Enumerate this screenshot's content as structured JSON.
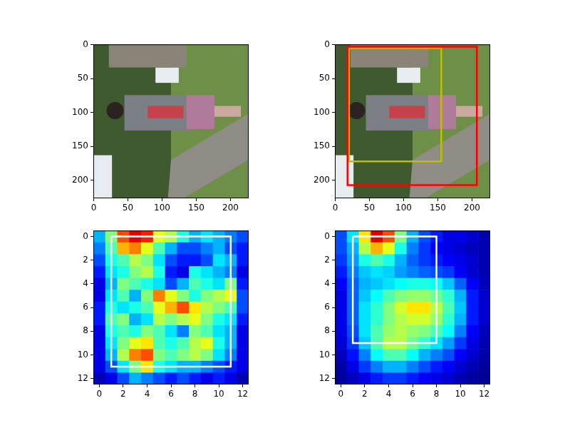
{
  "chart_data": [
    {
      "type": "image",
      "xlim": [
        -0.5,
        226.5
      ],
      "ylim": [
        226.5,
        -0.5
      ],
      "xticks": [
        0,
        50,
        100,
        150,
        200
      ],
      "yticks": [
        0,
        50,
        100,
        150,
        200
      ],
      "grid": false,
      "boxes": []
    },
    {
      "type": "image",
      "xlim": [
        -0.5,
        226.5
      ],
      "ylim": [
        226.5,
        -0.5
      ],
      "xticks": [
        0,
        50,
        100,
        150,
        200
      ],
      "yticks": [
        0,
        50,
        100,
        150,
        200
      ],
      "grid": false,
      "boxes": [
        {
          "color": "#ff0000",
          "x": [
            18,
            207
          ],
          "y": [
            3,
            207
          ]
        },
        {
          "color": "#bfbf00",
          "x": [
            20,
            155
          ],
          "y": [
            5,
            172
          ]
        }
      ]
    },
    {
      "type": "heatmap",
      "color": "jet",
      "xlim": [
        -0.5,
        12.5
      ],
      "ylim": [
        12.5,
        -0.5
      ],
      "xticks": [
        0,
        2,
        4,
        6,
        8,
        10,
        12
      ],
      "yticks": [
        0,
        2,
        4,
        6,
        8,
        10,
        12
      ],
      "grid": false,
      "boxes": [
        {
          "color": "#ffffff",
          "x": [
            1,
            11
          ],
          "y": [
            0,
            11
          ]
        }
      ],
      "cells": [
        [
          0.3,
          0.5,
          0.8,
          0.9,
          0.85,
          0.6,
          0.55,
          0.4,
          0.3,
          0.35,
          0.3,
          0.25,
          0.2
        ],
        [
          0.25,
          0.45,
          0.7,
          0.75,
          0.6,
          0.45,
          0.3,
          0.2,
          0.2,
          0.25,
          0.3,
          0.2,
          0.15
        ],
        [
          0.2,
          0.4,
          0.45,
          0.55,
          0.5,
          0.35,
          0.2,
          0.15,
          0.15,
          0.2,
          0.35,
          0.3,
          0.15
        ],
        [
          0.15,
          0.35,
          0.4,
          0.5,
          0.55,
          0.4,
          0.15,
          0.1,
          0.4,
          0.35,
          0.3,
          0.25,
          0.1
        ],
        [
          0.1,
          0.3,
          0.5,
          0.45,
          0.4,
          0.35,
          0.2,
          0.3,
          0.45,
          0.4,
          0.35,
          0.5,
          0.15
        ],
        [
          0.1,
          0.35,
          0.45,
          0.3,
          0.5,
          0.75,
          0.6,
          0.5,
          0.4,
          0.5,
          0.55,
          0.6,
          0.2
        ],
        [
          0.15,
          0.4,
          0.35,
          0.4,
          0.45,
          0.6,
          0.7,
          0.8,
          0.65,
          0.55,
          0.5,
          0.45,
          0.2
        ],
        [
          0.15,
          0.45,
          0.5,
          0.3,
          0.35,
          0.55,
          0.5,
          0.55,
          0.6,
          0.5,
          0.4,
          0.35,
          0.15
        ],
        [
          0.1,
          0.4,
          0.45,
          0.4,
          0.5,
          0.45,
          0.35,
          0.25,
          0.5,
          0.45,
          0.35,
          0.3,
          0.1
        ],
        [
          0.1,
          0.35,
          0.5,
          0.6,
          0.65,
          0.45,
          0.4,
          0.45,
          0.55,
          0.6,
          0.4,
          0.3,
          0.1
        ],
        [
          0.1,
          0.3,
          0.55,
          0.75,
          0.8,
          0.5,
          0.45,
          0.5,
          0.55,
          0.5,
          0.35,
          0.25,
          0.1
        ],
        [
          0.1,
          0.2,
          0.35,
          0.5,
          0.65,
          0.4,
          0.35,
          0.3,
          0.3,
          0.25,
          0.2,
          0.15,
          0.1
        ],
        [
          0.05,
          0.1,
          0.2,
          0.3,
          0.25,
          0.2,
          0.15,
          0.2,
          0.15,
          0.1,
          0.15,
          0.1,
          0.05
        ]
      ]
    },
    {
      "type": "heatmap",
      "color": "jet",
      "xlim": [
        -0.5,
        12.5
      ],
      "ylim": [
        12.5,
        -0.5
      ],
      "xticks": [
        0,
        2,
        4,
        6,
        8,
        10,
        12
      ],
      "yticks": [
        0,
        2,
        4,
        6,
        8,
        10,
        12
      ],
      "grid": false,
      "boxes": [
        {
          "color": "#ffffff",
          "x": [
            1,
            8
          ],
          "y": [
            0,
            9
          ]
        }
      ],
      "cells": [
        [
          0.2,
          0.35,
          0.65,
          0.9,
          0.8,
          0.5,
          0.3,
          0.2,
          0.15,
          0.1,
          0.1,
          0.08,
          0.05
        ],
        [
          0.2,
          0.3,
          0.55,
          0.7,
          0.6,
          0.4,
          0.25,
          0.18,
          0.12,
          0.1,
          0.08,
          0.06,
          0.05
        ],
        [
          0.18,
          0.28,
          0.4,
          0.45,
          0.4,
          0.3,
          0.22,
          0.18,
          0.15,
          0.12,
          0.1,
          0.08,
          0.05
        ],
        [
          0.15,
          0.25,
          0.32,
          0.35,
          0.33,
          0.28,
          0.25,
          0.22,
          0.2,
          0.18,
          0.12,
          0.08,
          0.05
        ],
        [
          0.12,
          0.22,
          0.3,
          0.32,
          0.35,
          0.38,
          0.4,
          0.4,
          0.38,
          0.32,
          0.22,
          0.12,
          0.06
        ],
        [
          0.1,
          0.22,
          0.32,
          0.38,
          0.45,
          0.5,
          0.52,
          0.52,
          0.48,
          0.42,
          0.3,
          0.15,
          0.08
        ],
        [
          0.1,
          0.22,
          0.35,
          0.42,
          0.5,
          0.58,
          0.65,
          0.65,
          0.55,
          0.45,
          0.32,
          0.15,
          0.08
        ],
        [
          0.1,
          0.22,
          0.35,
          0.42,
          0.5,
          0.55,
          0.58,
          0.58,
          0.52,
          0.42,
          0.3,
          0.15,
          0.08
        ],
        [
          0.1,
          0.2,
          0.35,
          0.45,
          0.52,
          0.55,
          0.52,
          0.5,
          0.45,
          0.38,
          0.25,
          0.12,
          0.06
        ],
        [
          0.08,
          0.18,
          0.32,
          0.45,
          0.55,
          0.55,
          0.48,
          0.42,
          0.35,
          0.28,
          0.18,
          0.1,
          0.05
        ],
        [
          0.06,
          0.14,
          0.25,
          0.38,
          0.45,
          0.45,
          0.38,
          0.3,
          0.25,
          0.2,
          0.12,
          0.08,
          0.04
        ],
        [
          0.04,
          0.1,
          0.18,
          0.25,
          0.3,
          0.3,
          0.25,
          0.2,
          0.15,
          0.12,
          0.08,
          0.05,
          0.03
        ],
        [
          0.03,
          0.06,
          0.1,
          0.15,
          0.18,
          0.18,
          0.15,
          0.12,
          0.1,
          0.08,
          0.05,
          0.03,
          0.02
        ]
      ]
    }
  ]
}
